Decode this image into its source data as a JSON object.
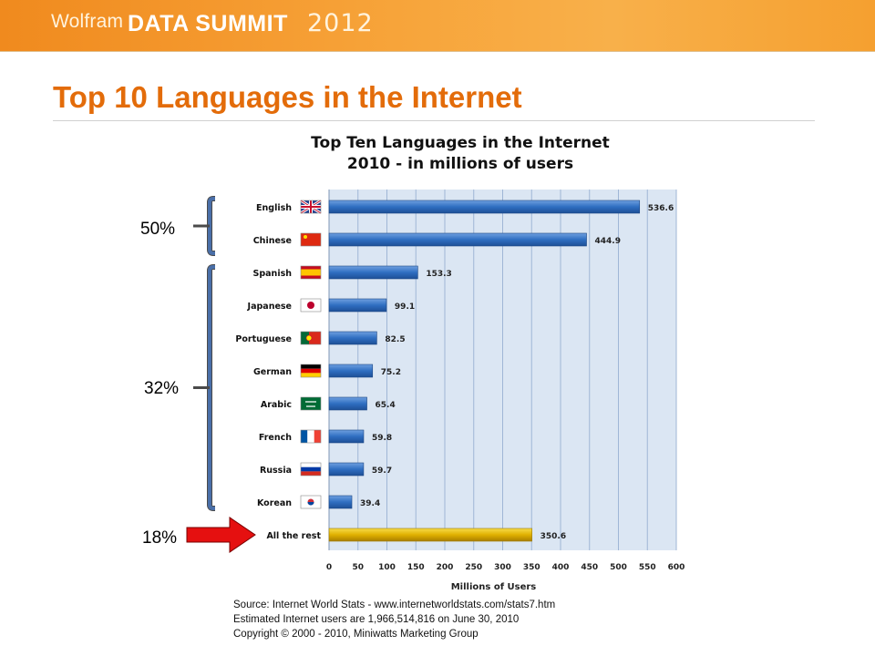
{
  "header": {
    "brand_wolfram": "Wolfram",
    "brand_event": "DATA SUMMIT",
    "brand_year": "2012"
  },
  "slide_title": "Top 10 Languages in the Internet",
  "callouts": {
    "top_group": "50%",
    "middle_group": "32%",
    "rest": "18%"
  },
  "source_lines": [
    "Source: Internet World Stats - www.internetworldstats.com/stats7.htm",
    "Estimated Internet users are 1,966,514,816 on June 30, 2010",
    "Copyright © 2000 - 2010, Miniwatts Marketing Group"
  ],
  "colors": {
    "accent_title": "#e36c0a",
    "bar_blue": "#2f6ec1",
    "bar_gold": "#e0b000",
    "plot_bg": "#dbe6f3",
    "bracket": "#4a6fa8",
    "arrow": "#e51010"
  },
  "chart_data": {
    "type": "bar",
    "orientation": "horizontal",
    "title": "Top Ten Languages in the Internet",
    "subtitle": "2010 - in millions of users",
    "xlabel": "Millions of Users",
    "ylabel": "",
    "xlim": [
      0,
      600
    ],
    "xticks": [
      0,
      50,
      100,
      150,
      200,
      250,
      300,
      350,
      400,
      450,
      500,
      550,
      600
    ],
    "grid": true,
    "categories": [
      "English",
      "Chinese",
      "Spanish",
      "Japanese",
      "Portuguese",
      "German",
      "Arabic",
      "French",
      "Russia",
      "Korean",
      "All the rest"
    ],
    "values": [
      536.6,
      444.9,
      153.3,
      99.1,
      82.5,
      75.2,
      65.4,
      59.8,
      59.7,
      39.4,
      350.6
    ],
    "value_labels": [
      "536.6",
      "444.9",
      "153.3",
      "99.1",
      "82.5",
      "75.2",
      "65.4",
      "59.8",
      "59.7",
      "39.4",
      "350.6"
    ],
    "highlight_category": "All the rest"
  }
}
